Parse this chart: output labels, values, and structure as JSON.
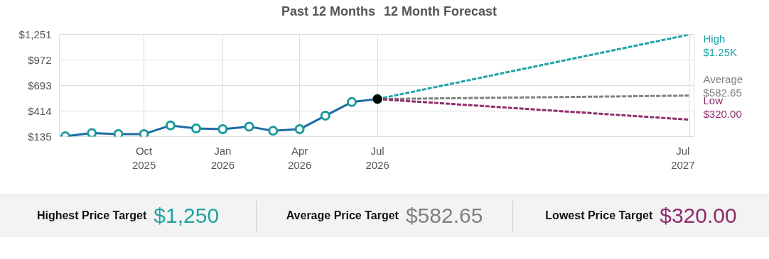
{
  "chart_data": {
    "type": "line",
    "title": "Past 12 Months",
    "subtitle": "12 Month Forecast",
    "x": [
      "2025-07",
      "2025-08",
      "2025-09",
      "2025-10",
      "2025-11",
      "2025-12",
      "2026-01",
      "2026-02",
      "2026-03",
      "2026-04",
      "2026-05",
      "2026-06",
      "2026-07"
    ],
    "series": [
      {
        "color": "#1f6aa5",
        "marker": "circle",
        "colors": [
          "#1a9a9a",
          "#1a9a9a",
          "#1a9a9a",
          "#1a9a9a",
          "#1a9a9a",
          "#1a9a9a",
          "#1a9a9a",
          "#1a9a9a",
          "#1a9a9a",
          "#1a9a9a",
          "#1a9a9a",
          "#1a9a9a",
          "#1a9a9a"
        ],
        "line_style": "solid",
        "values": [
          138,
          173,
          163,
          163,
          257,
          224,
          216,
          244,
          198,
          216,
          363,
          512,
          545
        ]
      },
      {
        "type": "scatter",
        "color": "#000000",
        "x": [
          "2026-07"
        ],
        "values": [
          545
        ]
      },
      {
        "name": "High",
        "color": "#1fa3a3",
        "line_style": "dashed",
        "x": [
          "2026-07",
          "2027-07"
        ],
        "values": [
          545,
          1250
        ],
        "value_labels": [
          null,
          "$1.25K"
        ]
      },
      {
        "name": "Average",
        "color": "#808080",
        "line_style": "dashed",
        "x": [
          "2026-07",
          "2027-07"
        ],
        "values": [
          545,
          582.65
        ],
        "value_labels": [
          null,
          "$582.65"
        ]
      },
      {
        "name": "Low",
        "color": "#8e2c6b",
        "line_style": "dashed",
        "x": [
          "2026-07",
          "2027-07"
        ],
        "values": [
          545,
          320
        ],
        "value_labels": [
          null,
          "$320.00"
        ]
      }
    ],
    "xlim": [
      "2025-06-24",
      "2027-07-07"
    ],
    "xticks": [
      {
        "value": "2025-10",
        "label": "Oct\n2025"
      },
      {
        "value": "2026-01",
        "label": "Jan\n2026"
      },
      {
        "value": "2026-04",
        "label": "Apr\n2026"
      },
      {
        "value": "2026-07",
        "label": "Jul\n2026"
      },
      {
        "value": "2027-07",
        "label": "Jul\n2027"
      }
    ],
    "ylim": [
      135,
      1251
    ],
    "yticks": [
      {
        "value": 135,
        "label": "$135"
      },
      {
        "value": 414,
        "label": "$414"
      },
      {
        "value": 693,
        "label": "$693"
      },
      {
        "value": 972,
        "label": "$972"
      },
      {
        "value": 1251,
        "label": "$1,251"
      }
    ],
    "grid": true,
    "legend": false,
    "annotations": [
      "Highest Price Target",
      "$1,250",
      "Average Price Target",
      "$582.65",
      "Lowest Price Target",
      "$320.00"
    ]
  }
}
